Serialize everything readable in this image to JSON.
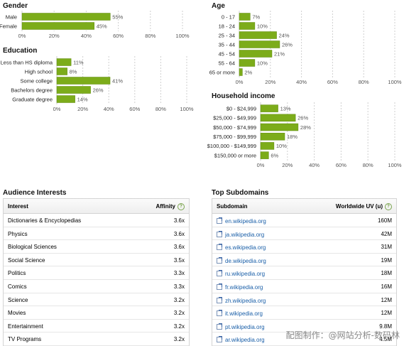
{
  "colors": {
    "bar": "#7cac1a",
    "bar_edge": "#5f8a0e",
    "grid": "#cfcfcf",
    "axis_text": "#555555",
    "link": "#1a5fa8"
  },
  "chart_data": [
    {
      "id": "gender",
      "type": "bar",
      "orientation": "horizontal",
      "title": "Gender",
      "categories": [
        "Male",
        "Female"
      ],
      "values": [
        55,
        45
      ],
      "value_labels": [
        "55%",
        "45%"
      ],
      "xlim": [
        0,
        100
      ],
      "ticks": [
        "0%",
        "20%",
        "40%",
        "60%",
        "80%",
        "100%"
      ],
      "grid": true
    },
    {
      "id": "age",
      "type": "bar",
      "orientation": "horizontal",
      "title": "Age",
      "categories": [
        "0 - 17",
        "18 - 24",
        "25 - 34",
        "35 - 44",
        "45 - 54",
        "55 - 64",
        "65 or more"
      ],
      "values": [
        7,
        10,
        24,
        26,
        21,
        10,
        2
      ],
      "value_labels": [
        "7%",
        "10%",
        "24%",
        "26%",
        "21%",
        "10%",
        "2%"
      ],
      "xlim": [
        0,
        100
      ],
      "ticks": [
        "0%",
        "20%",
        "40%",
        "60%",
        "80%",
        "100%"
      ],
      "grid": true
    },
    {
      "id": "education",
      "type": "bar",
      "orientation": "horizontal",
      "title": "Education",
      "categories": [
        "Less than HS diploma",
        "High school",
        "Some college",
        "Bachelors degree",
        "Graduate degree"
      ],
      "values": [
        11,
        8,
        41,
        26,
        14
      ],
      "value_labels": [
        "11%",
        "8%",
        "41%",
        "26%",
        "14%"
      ],
      "xlim": [
        0,
        100
      ],
      "ticks": [
        "0%",
        "20%",
        "40%",
        "60%",
        "80%",
        "100%"
      ],
      "grid": true
    },
    {
      "id": "income",
      "type": "bar",
      "orientation": "horizontal",
      "title": "Household income",
      "categories": [
        "$0 - $24,999",
        "$25,000 - $49,999",
        "$50,000 - $74,999",
        "$75,000 - $99,999",
        "$100,000 - $149,999",
        "$150,000 or more"
      ],
      "values": [
        13,
        26,
        28,
        18,
        10,
        6
      ],
      "value_labels": [
        "13%",
        "26%",
        "28%",
        "18%",
        "10%",
        "6%"
      ],
      "xlim": [
        0,
        100
      ],
      "ticks": [
        "0%",
        "20%",
        "40%",
        "60%",
        "80%",
        "100%"
      ],
      "grid": true
    }
  ],
  "interests": {
    "title": "Audience Interests",
    "col_interest": "Interest",
    "col_affinity": "Affinity",
    "help_glyph": "?",
    "rows": [
      {
        "name": "Dictionaries & Encyclopedias",
        "affinity": "3.6x"
      },
      {
        "name": "Physics",
        "affinity": "3.6x"
      },
      {
        "name": "Biological Sciences",
        "affinity": "3.6x"
      },
      {
        "name": "Social Science",
        "affinity": "3.5x"
      },
      {
        "name": "Politics",
        "affinity": "3.3x"
      },
      {
        "name": "Comics",
        "affinity": "3.3x"
      },
      {
        "name": "Science",
        "affinity": "3.2x"
      },
      {
        "name": "Movies",
        "affinity": "3.2x"
      },
      {
        "name": "Entertainment",
        "affinity": "3.2x"
      },
      {
        "name": "TV Programs",
        "affinity": "3.2x"
      }
    ]
  },
  "subdomains": {
    "title": "Top Subdomains",
    "col_subdomain": "Subdomain",
    "col_uv": "Worldwide UV (u)",
    "help_glyph": "?",
    "rows": [
      {
        "domain": "en.wikipedia.org",
        "uv": "160M"
      },
      {
        "domain": "ja.wikipedia.org",
        "uv": "42M"
      },
      {
        "domain": "es.wikipedia.org",
        "uv": "31M"
      },
      {
        "domain": "de.wikipedia.org",
        "uv": "19M"
      },
      {
        "domain": "ru.wikipedia.org",
        "uv": "18M"
      },
      {
        "domain": "fr.wikipedia.org",
        "uv": "16M"
      },
      {
        "domain": "zh.wikipedia.org",
        "uv": "12M"
      },
      {
        "domain": "it.wikipedia.org",
        "uv": "12M"
      },
      {
        "domain": "pt.wikipedia.org",
        "uv": "9.8M"
      },
      {
        "domain": "ar.wikipedia.org",
        "uv": "4.5M"
      }
    ]
  },
  "watermark": "配图制作：@网站分析-数码林"
}
